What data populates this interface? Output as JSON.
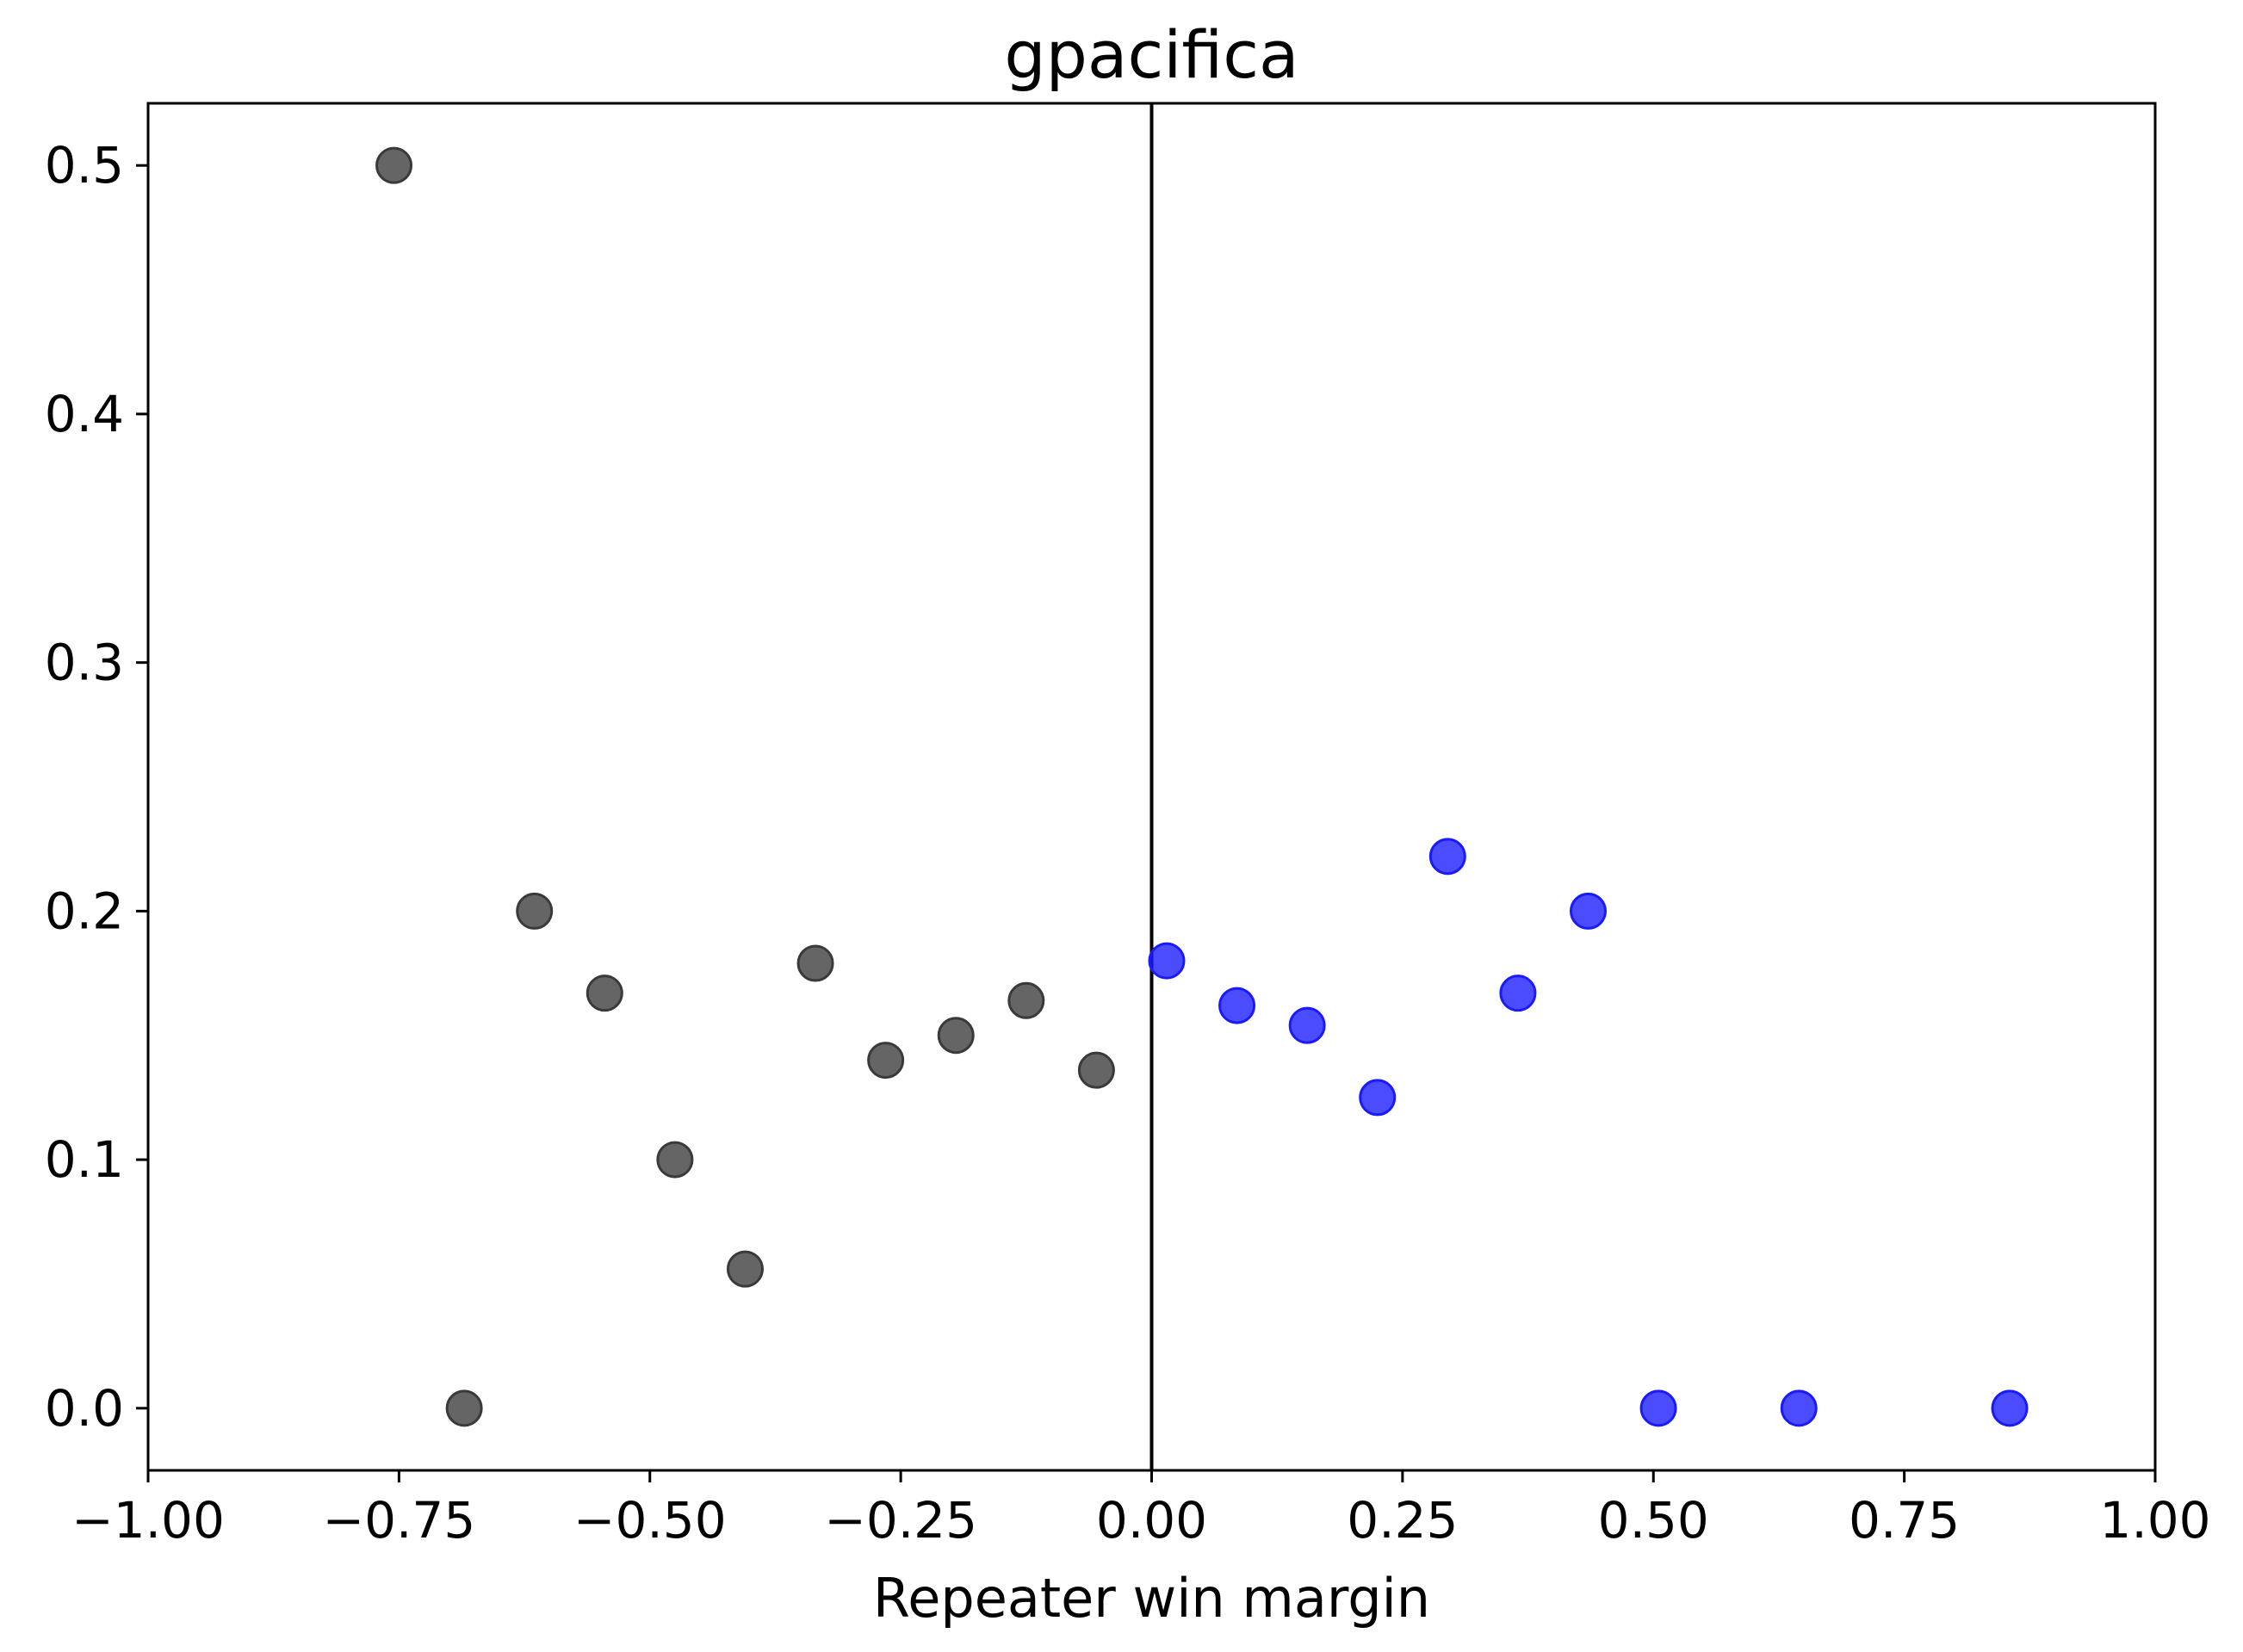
{
  "chart_data": {
    "type": "scatter",
    "title": "gpacifica",
    "xlabel": "Repeater win margin",
    "ylabel": "",
    "xlim": [
      -1.0,
      1.0
    ],
    "ylim": [
      -0.025,
      0.525
    ],
    "xticks": [
      -1.0,
      -0.75,
      -0.5,
      -0.25,
      0.0,
      0.25,
      0.5,
      0.75,
      1.0
    ],
    "xtick_labels": [
      "−1.00",
      "−0.75",
      "−0.50",
      "−0.25",
      "0.00",
      "0.25",
      "0.50",
      "0.75",
      "1.00"
    ],
    "yticks": [
      0.0,
      0.1,
      0.2,
      0.3,
      0.4,
      0.5
    ],
    "ytick_labels": [
      "0.0",
      "0.1",
      "0.2",
      "0.3",
      "0.4",
      "0.5"
    ],
    "grid": false,
    "reference_line": {
      "orientation": "vertical",
      "x": 0.0,
      "color": "#000000"
    },
    "series": [
      {
        "color": "#3a3a3a",
        "points": [
          {
            "x": -0.755,
            "y": 0.5
          },
          {
            "x": -0.685,
            "y": 0.0
          },
          {
            "x": -0.615,
            "y": 0.2
          },
          {
            "x": -0.545,
            "y": 0.167
          },
          {
            "x": -0.475,
            "y": 0.1
          },
          {
            "x": -0.405,
            "y": 0.056
          },
          {
            "x": -0.335,
            "y": 0.179
          },
          {
            "x": -0.265,
            "y": 0.14
          },
          {
            "x": -0.195,
            "y": 0.15
          },
          {
            "x": -0.125,
            "y": 0.164
          },
          {
            "x": -0.055,
            "y": 0.136
          }
        ]
      },
      {
        "color": "#1a1aff",
        "points": [
          {
            "x": 0.015,
            "y": 0.18
          },
          {
            "x": 0.085,
            "y": 0.162
          },
          {
            "x": 0.155,
            "y": 0.154
          },
          {
            "x": 0.225,
            "y": 0.125
          },
          {
            "x": 0.295,
            "y": 0.222
          },
          {
            "x": 0.365,
            "y": 0.167
          },
          {
            "x": 0.435,
            "y": 0.2
          },
          {
            "x": 0.505,
            "y": 0.0
          },
          {
            "x": 0.645,
            "y": 0.0
          },
          {
            "x": 0.855,
            "y": 0.0
          }
        ]
      }
    ]
  }
}
